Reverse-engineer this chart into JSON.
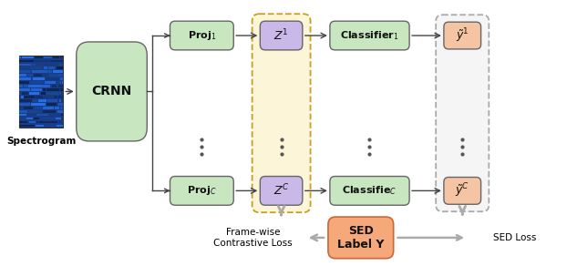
{
  "fig_width": 6.22,
  "fig_height": 2.92,
  "dpi": 100,
  "bg_color": "#ffffff",
  "spectrogram_label": "Spectrogram",
  "crnn_label": "CRNN",
  "crnn_color": "#c8e6c0",
  "proj_color": "#c8e6c0",
  "z_color": "#c9b8e8",
  "cls_color": "#c8e6c0",
  "out_color": "#f5c5a3",
  "sed_color": "#f5a87a",
  "arrow_color": "#555555",
  "gray_arrow_color": "#aaaaaa",
  "frame_contrastive_label": "Frame-wise\nContrastive Loss",
  "sed_loss_label": "SED Loss",
  "sed_label_box_label": "SED\nLabel Y"
}
